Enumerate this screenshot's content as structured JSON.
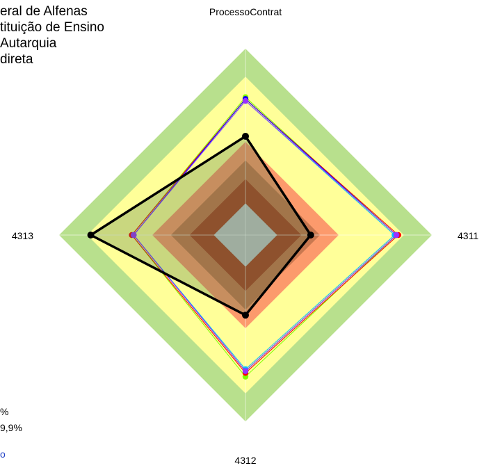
{
  "header": {
    "lines": [
      "eral de Alfenas",
      "tituição de Ensino",
      " Autarquia",
      "direta"
    ]
  },
  "footer": {
    "lines": [
      "%",
      "9,9%",
      "o"
    ]
  },
  "chart_data": {
    "type": "radar",
    "title": "",
    "axes": [
      "ProcessoContrat",
      "4311",
      "4312",
      "4313"
    ],
    "scale_max": 1.0,
    "bands": [
      {
        "level": 1.0,
        "color": "#b8e08d"
      },
      {
        "level": 0.85,
        "color": "#ffff99"
      },
      {
        "level": 0.75,
        "color": "#ffff99"
      },
      {
        "level": 0.5,
        "color": "#fc9a6c"
      },
      {
        "level": 0.4,
        "color": "#c97850"
      },
      {
        "level": 0.3,
        "color": "#ad4628"
      },
      {
        "level": 0.17,
        "color": "#c5c5c5"
      }
    ],
    "series": [
      {
        "color": "#000000",
        "values": [
          0.53,
          0.35,
          0.43,
          0.83
        ],
        "highlight": true
      },
      {
        "color": "#7fff00",
        "values": [
          0.74,
          0.81,
          0.76,
          0.61
        ]
      },
      {
        "color": "#ff0000",
        "values": [
          0.73,
          0.82,
          0.74,
          0.61
        ]
      },
      {
        "color": "#00bfff",
        "values": [
          0.72,
          0.8,
          0.72,
          0.6
        ]
      },
      {
        "color": "#0000ff",
        "values": [
          0.73,
          0.81,
          0.73,
          0.6
        ]
      },
      {
        "color": "#9b30ff",
        "values": [
          0.72,
          0.81,
          0.73,
          0.6
        ]
      }
    ]
  }
}
